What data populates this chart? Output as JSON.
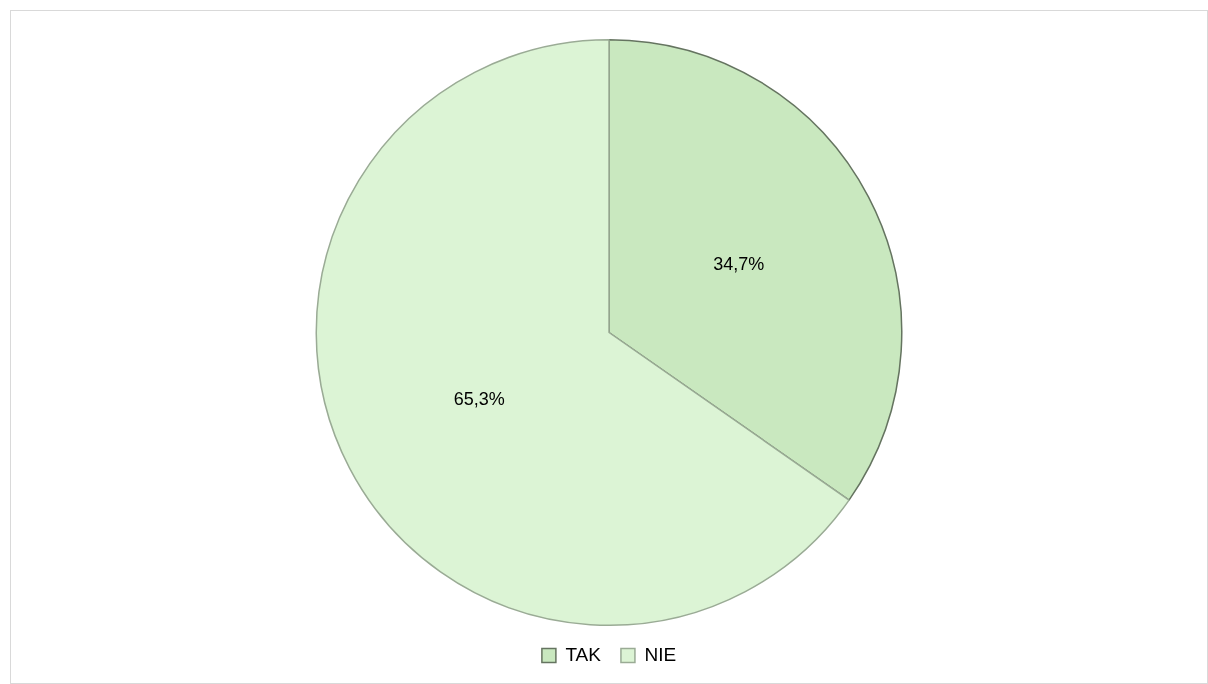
{
  "chart_data": {
    "type": "pie",
    "categories": [
      "TAK",
      "NIE"
    ],
    "values": [
      34.7,
      65.3
    ],
    "colors": [
      "#c9e8bf",
      "#dcf4d5"
    ],
    "value_labels": [
      "34,7%",
      "65,3%"
    ],
    "legend": "bottom"
  }
}
